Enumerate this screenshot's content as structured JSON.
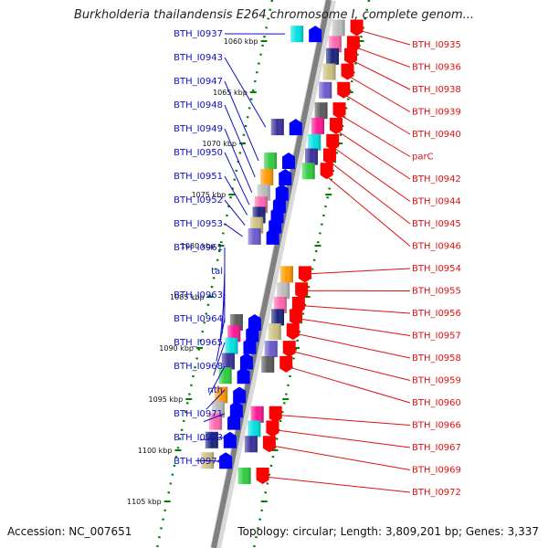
{
  "title": "Burkholderia thailandensis E264 chromosome I, complete genom...",
  "footer": {
    "accession": "Accession: NC_007651",
    "summary": "Topology: circular; Length: 3,809,201 bp; Genes: 3,337"
  },
  "colors": {
    "backbone": "#808080",
    "forward_label": "#1010c0",
    "reverse_label": "#e01010",
    "forward_arrow": "#0000ff",
    "reverse_arrow": "#ff0000",
    "tick_line": "#008000"
  },
  "ticks": [
    {
      "label": "1060 kbp",
      "kbp": 1060
    },
    {
      "label": "1065 kbp",
      "kbp": 1065
    },
    {
      "label": "1070 kbp",
      "kbp": 1070
    },
    {
      "label": "1075 kbp",
      "kbp": 1075
    },
    {
      "label": "1080 kbp",
      "kbp": 1080
    },
    {
      "label": "1085 kbp",
      "kbp": 1085
    },
    {
      "label": "1090 kbp",
      "kbp": 1090
    },
    {
      "label": "1095 kbp",
      "kbp": 1095
    },
    {
      "label": "1100 kbp",
      "kbp": 1100
    },
    {
      "label": "1105 kbp",
      "kbp": 1105
    }
  ],
  "forward_genes": [
    {
      "label": "BTH_I0937",
      "kbp": 1059.3
    },
    {
      "label": "BTH_I0943",
      "kbp": 1068.4
    },
    {
      "label": "BTH_I0947",
      "kbp": 1071.7
    },
    {
      "label": "BTH_I0948",
      "kbp": 1073.3
    },
    {
      "label": "BTH_I0949",
      "kbp": 1074.8
    },
    {
      "label": "BTH_I0950",
      "kbp": 1076.0
    },
    {
      "label": "BTH_I0951",
      "kbp": 1077.0
    },
    {
      "label": "BTH_I0952",
      "kbp": 1078.0
    },
    {
      "label": "BTH_I0953",
      "kbp": 1079.1
    },
    {
      "label": "BTH_I0961",
      "kbp": 1087.5
    },
    {
      "label": "tal",
      "kbp": 1088.6
    },
    {
      "label": "BTH_I0963",
      "kbp": 1089.8
    },
    {
      "label": "BTH_I0964",
      "kbp": 1091.3
    },
    {
      "label": "BTH_I0965",
      "kbp": 1092.7
    },
    {
      "label": "BTH_I0968",
      "kbp": 1094.6
    },
    {
      "label": "nth",
      "kbp": 1096.0
    },
    {
      "label": "BTH_I0971",
      "kbp": 1097.2
    },
    {
      "label": "BTH_I0973",
      "kbp": 1099.0
    },
    {
      "label": "BTH_I0974",
      "kbp": 1101.0
    }
  ],
  "reverse_genes": [
    {
      "label": "BTH_I0935",
      "kbp": 1058.7
    },
    {
      "label": "BTH_I0936",
      "kbp": 1060.3
    },
    {
      "label": "BTH_I0938",
      "kbp": 1061.5
    },
    {
      "label": "BTH_I0939",
      "kbp": 1063.0
    },
    {
      "label": "BTH_I0940",
      "kbp": 1064.8
    },
    {
      "label": "parC",
      "kbp": 1066.8
    },
    {
      "label": "BTH_I0942",
      "kbp": 1068.3
    },
    {
      "label": "BTH_I0944",
      "kbp": 1069.9
    },
    {
      "label": "BTH_I0945",
      "kbp": 1071.3
    },
    {
      "label": "BTH_I0946",
      "kbp": 1072.7
    },
    {
      "label": "BTH_I0954",
      "kbp": 1082.8
    },
    {
      "label": "BTH_I0955",
      "kbp": 1084.4
    },
    {
      "label": "BTH_I0956",
      "kbp": 1085.8
    },
    {
      "label": "BTH_I0957",
      "kbp": 1087.0
    },
    {
      "label": "BTH_I0958",
      "kbp": 1088.4
    },
    {
      "label": "BTH_I0959",
      "kbp": 1090.1
    },
    {
      "label": "BTH_I0960",
      "kbp": 1091.6
    },
    {
      "label": "BTH_I0966",
      "kbp": 1096.5
    },
    {
      "label": "BTH_I0967",
      "kbp": 1097.9
    },
    {
      "label": "BTH_I0969",
      "kbp": 1099.4
    },
    {
      "label": "BTH_I0972",
      "kbp": 1102.5
    }
  ]
}
